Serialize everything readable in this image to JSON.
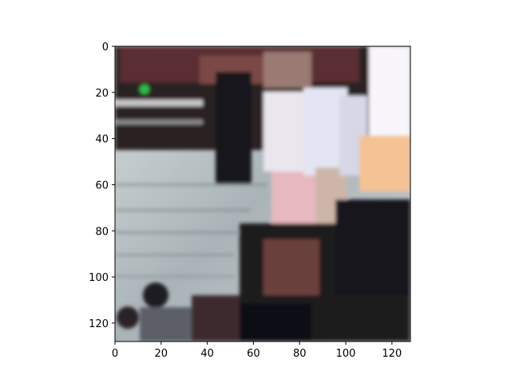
{
  "chart_data": {
    "type": "image",
    "title": "",
    "xlabel": "",
    "ylabel": "",
    "xlim": [
      0,
      128
    ],
    "ylim": [
      128,
      0
    ],
    "x_ticks": [
      0,
      20,
      40,
      60,
      80,
      100,
      120
    ],
    "y_ticks": [
      0,
      20,
      40,
      60,
      80,
      100,
      120
    ],
    "x_tick_labels": [
      "0",
      "20",
      "40",
      "60",
      "80",
      "100",
      "120"
    ],
    "y_tick_labels": [
      "0",
      "20",
      "40",
      "60",
      "80",
      "100",
      "120"
    ],
    "grid": false,
    "image_description_colors": {
      "floor": "#b7c1c4",
      "dark_crowd": "#2a2328",
      "white_dress": "#e9e4ee",
      "pink_dress": "#e6b7bd",
      "bright_area": "#f7f4fb",
      "orange_area": "#f3c08f"
    }
  }
}
